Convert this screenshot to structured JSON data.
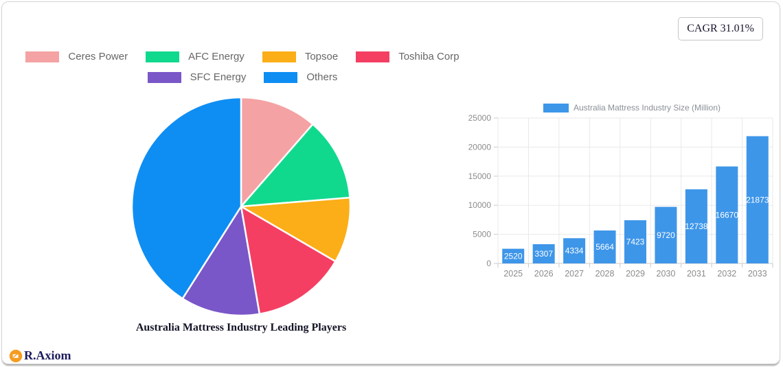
{
  "badge": {
    "label": "CAGR 31.01%"
  },
  "logo": {
    "text": "R.Axiom",
    "icon_color": "#F59C21",
    "icon": "chart-doc-icon"
  },
  "chart_data": [
    {
      "type": "pie",
      "title": "Australia Mattress Industry Leading Players",
      "labels": [
        "Ceres Power",
        "AFC Energy",
        "Topsoe",
        "Toshiba Corp",
        "SFC Energy",
        "Others"
      ],
      "values": [
        11.4,
        12.3,
        9.7,
        13.9,
        11.7,
        41.0
      ],
      "unit": "percent-share",
      "colors": [
        "#F4A2A3",
        "#10D98E",
        "#FBAE17",
        "#F43F63",
        "#7A57C8",
        "#0E8EF3"
      ],
      "legend_position": "top-center-two-rows",
      "slice_border_color": "#ffffff",
      "start_angle": "12-o-clock-clockwise"
    },
    {
      "type": "bar",
      "legend": "Australia Mattress Industry Size (Million)",
      "categories": [
        "2025",
        "2026",
        "2027",
        "2028",
        "2029",
        "2030",
        "2031",
        "2032",
        "2033"
      ],
      "values": [
        2520,
        3307,
        4334,
        5664,
        7423,
        9720,
        12738,
        16670,
        21873
      ],
      "ylim": [
        0,
        25000
      ],
      "yticks": [
        0,
        5000,
        10000,
        15000,
        20000,
        25000
      ],
      "bar_color": "#3E96E9",
      "value_label_color": "#ffffff",
      "grid": true,
      "grid_color": "#e9e9e9",
      "axis_color": "#c9c9c9",
      "tick_label_color": "#8b8b8b",
      "value_label_position": "inside-center"
    }
  ]
}
